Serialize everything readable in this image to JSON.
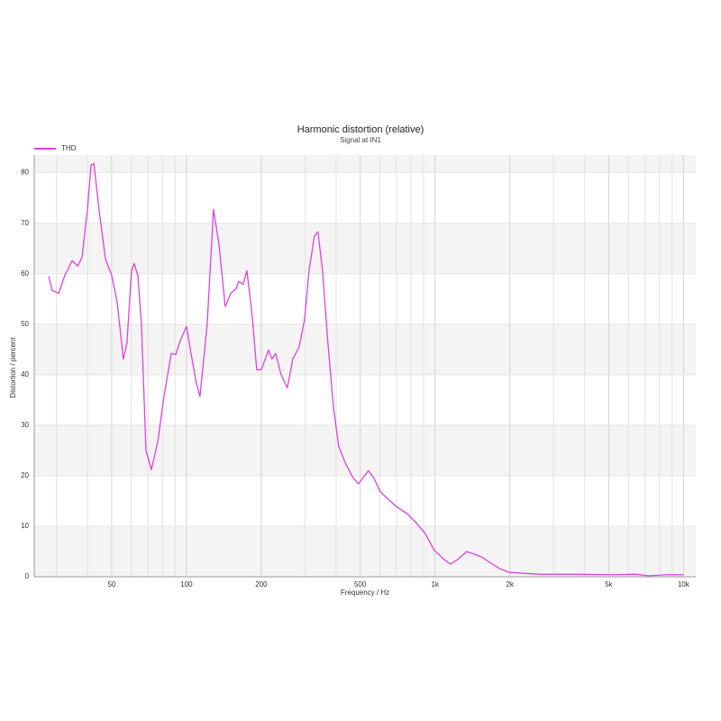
{
  "chart_data": {
    "type": "line",
    "title": "Harmonic distortion (relative)",
    "subtitle": "Signal at IN1",
    "x_label": "Frequency / Hz",
    "y_label": "Distortion / percent",
    "x_scale": "log",
    "xlim": [
      24.4,
      11200
    ],
    "ylim": [
      0,
      83.5
    ],
    "xticks": [
      50,
      100,
      200,
      500,
      {
        "value": 1000,
        "label": "1k"
      },
      {
        "value": 2000,
        "label": "2k"
      },
      {
        "value": 5000,
        "label": "5k"
      },
      {
        "value": 10000,
        "label": "10k"
      }
    ],
    "x_minor_grid": [
      30,
      40,
      60,
      70,
      80,
      90,
      300,
      400,
      600,
      700,
      800,
      900,
      3000,
      4000,
      6000,
      7000,
      8000,
      9000
    ],
    "yticks": [
      0,
      10,
      20,
      30,
      40,
      50,
      60,
      70,
      80
    ],
    "grid": true,
    "legend": "top-left",
    "series": [
      {
        "name": "THD",
        "color": "#e040e0",
        "x": [
          27.9,
          28.8,
          30.6,
          32.4,
          34.7,
          36.5,
          38.0,
          40.0,
          41.3,
          42.4,
          44.6,
          47.2,
          50,
          52.6,
          55.7,
          57.6,
          60.1,
          61.6,
          63.7,
          65.9,
          68.7,
          72.2,
          76.6,
          81.2,
          86.8,
          90.5,
          94.3,
          100,
          104.3,
          109.6,
          113.3,
          121.1,
          128.4,
          135.0,
          143.2,
          150.6,
          158.2,
          162.3,
          169.1,
          175.0,
          183.8,
          191.7,
          199.9,
          213.8,
          220.9,
          228.5,
          240.0,
          254.5,
          267.7,
          284.0,
          298.3,
          311.2,
          326.9,
          338.1,
          352.6,
          370.7,
          389.6,
          409.6,
          437.7,
          468.0,
          492.0,
          512.9,
          539.3,
          567.1,
          601.4,
          643.2,
          698.5,
          772.4,
          839.6,
          912.8,
          991.8,
          1078,
          1153,
          1232,
          1340,
          1420,
          1543,
          1679,
          1824,
          1982,
          2245,
          2652,
          3703,
          5174,
          6370,
          7228,
          8535,
          10000
        ],
        "values": [
          59.5,
          56.7,
          56.1,
          59.7,
          62.6,
          61.5,
          63.3,
          73.1,
          81.5,
          81.8,
          72.2,
          62.9,
          59.7,
          54.4,
          43.1,
          46.3,
          60.6,
          62.0,
          59.7,
          49.9,
          25.0,
          21.2,
          26.7,
          35.7,
          44.2,
          44.0,
          46.7,
          49.6,
          44.2,
          38.3,
          35.7,
          49.9,
          72.7,
          66.0,
          53.5,
          56.1,
          57.0,
          58.5,
          57.9,
          60.6,
          51.7,
          41.0,
          41.0,
          44.9,
          43.1,
          44.2,
          40.1,
          37.4,
          43.1,
          45.5,
          50.8,
          60.6,
          67.4,
          68.3,
          60.6,
          46.3,
          33.9,
          25.8,
          22.3,
          19.6,
          18.4,
          19.6,
          21.0,
          19.6,
          16.9,
          15.5,
          13.9,
          12.5,
          10.7,
          8.6,
          5.3,
          3.6,
          2.5,
          3.4,
          5.0,
          4.6,
          3.9,
          2.7,
          1.6,
          0.9,
          0.7,
          0.5,
          0.5,
          0.4,
          0.5,
          0.2,
          0.4,
          0.4
        ]
      }
    ]
  }
}
